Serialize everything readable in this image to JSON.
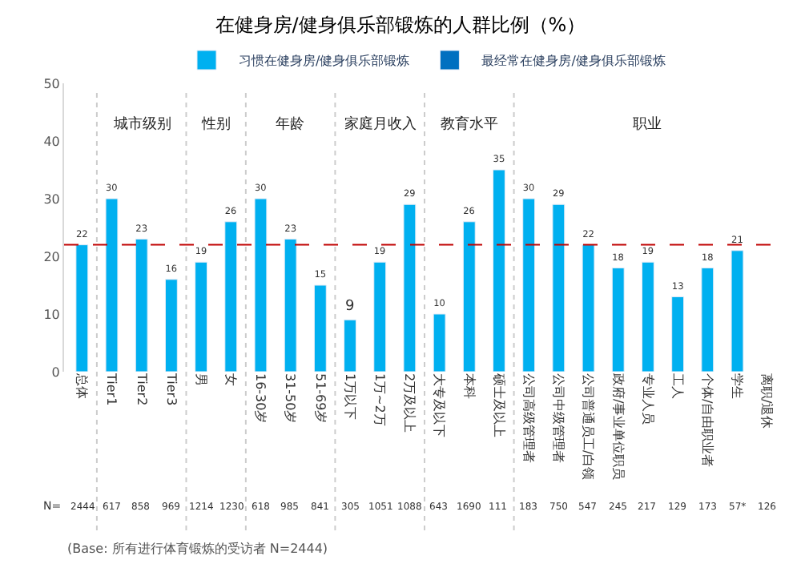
{
  "chart_data": {
    "type": "bar",
    "title": "在健身房/健身俱乐部锻炼的人群比例（%）",
    "categories": [
      "总体",
      "Tier1",
      "Tier2",
      "Tier3",
      "男",
      "女",
      "16-30岁",
      "31-50岁",
      "51-69岁",
      "1万以下",
      "1万~2万",
      "2万及以上",
      "大专及以下",
      "本科",
      "硕士及以上",
      "公司高级管理者",
      "公司中级管理者",
      "公司普通员工/白领",
      "政府/事业单位职员",
      "专业人员",
      "工人",
      "个体/自由职业者",
      "学生",
      "离职/退休"
    ],
    "series": [
      {
        "name": "习惯在健身房/健身俱乐部锻炼",
        "color": "#00b0f0",
        "values": [
          22,
          30,
          23,
          16,
          19,
          26,
          30,
          23,
          15,
          9,
          19,
          29,
          10,
          26,
          35,
          30,
          29,
          22,
          18,
          19,
          13,
          18,
          21,
          null
        ]
      },
      {
        "name": "最经常在健身房/健身俱乐部锻炼",
        "color": "#0070c0",
        "values": [
          null,
          null,
          null,
          null,
          null,
          null,
          null,
          null,
          null,
          null,
          null,
          null,
          null,
          null,
          null,
          null,
          null,
          null,
          null,
          null,
          null,
          null,
          null,
          null
        ]
      }
    ],
    "data_labels": true,
    "ylim": [
      0,
      50
    ],
    "yticks": [
      0,
      10,
      20,
      30,
      40,
      50
    ],
    "legend": "top",
    "ref_lines": [
      {
        "axis": "y",
        "value": 22,
        "color": "#c00000",
        "line_style": "dashed"
      }
    ],
    "annotations": [
      "城市级别",
      "性别",
      "年龄",
      "家庭月收入",
      "教育水平",
      "职业",
      "N=",
      "2444",
      "617",
      "858",
      "969",
      "1214",
      "1230",
      "618",
      "985",
      "841",
      "305",
      "1051",
      "1088",
      "643",
      "1690",
      "111",
      "183",
      "750",
      "547",
      "245",
      "217",
      "129",
      "173",
      "57*",
      "126",
      "(Base: 所有进行体育锻炼的受访者 N=2444)"
    ]
  }
}
